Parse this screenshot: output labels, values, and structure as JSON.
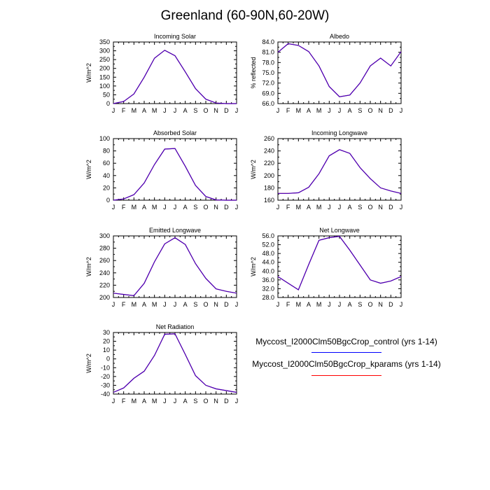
{
  "title": "Greenland (60-90N,60-20W)",
  "colors": {
    "control": "#0000ff",
    "kparams": "#ff0000",
    "overlap": "#3f00bf",
    "axis": "#000000",
    "background": "#ffffff"
  },
  "legend": {
    "control": "Myccost_I2000Clm50BgcCrop_control (yrs 1-14)",
    "kparams": "Myccost_I2000Clm50BgcCrop_kparams (yrs 1-14)"
  },
  "chart_data": [
    {
      "type": "line",
      "title": "Incoming Solar",
      "ylabel": "W/m^2",
      "categories": [
        "J",
        "F",
        "M",
        "A",
        "M",
        "J",
        "J",
        "A",
        "S",
        "O",
        "N",
        "D",
        "J"
      ],
      "ylim": [
        0,
        350
      ],
      "yticks": [
        "0",
        "50",
        "100",
        "150",
        "200",
        "250",
        "300",
        "350"
      ],
      "series": [
        {
          "name": "Myccost_I2000Clm50BgcCrop_control (yrs 1-14)",
          "values": [
            0,
            12,
            55,
            150,
            258,
            303,
            272,
            180,
            85,
            25,
            3,
            0,
            0
          ]
        },
        {
          "name": "Myccost_I2000Clm50BgcCrop_kparams (yrs 1-14)",
          "values": [
            0,
            12,
            55,
            150,
            258,
            303,
            272,
            180,
            85,
            25,
            3,
            0,
            0
          ]
        }
      ]
    },
    {
      "type": "line",
      "title": "Albedo",
      "ylabel": "% reflected",
      "categories": [
        "J",
        "F",
        "M",
        "A",
        "M",
        "J",
        "J",
        "A",
        "S",
        "O",
        "N",
        "D",
        "J"
      ],
      "ylim": [
        66,
        84
      ],
      "yticks": [
        "66.0",
        "69.0",
        "72.0",
        "75.0",
        "78.0",
        "81.0",
        "84.0"
      ],
      "series": [
        {
          "name": "Myccost_I2000Clm50BgcCrop_control (yrs 1-14)",
          "values": [
            81.0,
            83.5,
            83.0,
            81.2,
            77.0,
            71.0,
            68.0,
            68.5,
            72.0,
            77.0,
            79.3,
            77.0,
            81.2
          ]
        },
        {
          "name": "Myccost_I2000Clm50BgcCrop_kparams (yrs 1-14)",
          "values": [
            81.0,
            83.5,
            83.0,
            81.2,
            77.0,
            71.0,
            68.0,
            68.5,
            72.0,
            77.0,
            79.3,
            77.0,
            81.2
          ]
        }
      ]
    },
    {
      "type": "line",
      "title": "Absorbed Solar",
      "ylabel": "W/m^2",
      "categories": [
        "J",
        "F",
        "M",
        "A",
        "M",
        "J",
        "J",
        "A",
        "S",
        "O",
        "N",
        "D",
        "J"
      ],
      "ylim": [
        0,
        100
      ],
      "yticks": [
        "0",
        "20",
        "40",
        "60",
        "80",
        "100"
      ],
      "series": [
        {
          "name": "Myccost_I2000Clm50BgcCrop_control (yrs 1-14)",
          "values": [
            0,
            2,
            9,
            28,
            58,
            83,
            84,
            55,
            24,
            6,
            0.5,
            0,
            0
          ]
        },
        {
          "name": "Myccost_I2000Clm50BgcCrop_kparams (yrs 1-14)",
          "values": [
            0,
            2,
            9,
            28,
            58,
            83,
            84,
            55,
            24,
            6,
            0.5,
            0,
            0
          ]
        }
      ]
    },
    {
      "type": "line",
      "title": "Incoming Longwave",
      "ylabel": "W/m^2",
      "categories": [
        "J",
        "F",
        "M",
        "A",
        "M",
        "J",
        "J",
        "A",
        "S",
        "O",
        "N",
        "D",
        "J"
      ],
      "ylim": [
        160,
        260
      ],
      "yticks": [
        "160",
        "180",
        "200",
        "220",
        "240",
        "260"
      ],
      "series": [
        {
          "name": "Myccost_I2000Clm50BgcCrop_control (yrs 1-14)",
          "values": [
            171,
            171,
            172,
            181,
            203,
            232,
            242,
            236,
            213,
            195,
            180,
            175,
            171
          ]
        },
        {
          "name": "Myccost_I2000Clm50BgcCrop_kparams (yrs 1-14)",
          "values": [
            171,
            171,
            172,
            181,
            203,
            232,
            242,
            236,
            213,
            195,
            180,
            175,
            171
          ]
        }
      ]
    },
    {
      "type": "line",
      "title": "Emitted Longwave",
      "ylabel": "W/m^2",
      "categories": [
        "J",
        "F",
        "M",
        "A",
        "M",
        "J",
        "J",
        "A",
        "S",
        "O",
        "N",
        "D",
        "J"
      ],
      "ylim": [
        200,
        300
      ],
      "yticks": [
        "200",
        "220",
        "240",
        "260",
        "280",
        "300"
      ],
      "series": [
        {
          "name": "Myccost_I2000Clm50BgcCrop_control (yrs 1-14)",
          "values": [
            207,
            205,
            203,
            223,
            258,
            287,
            297,
            286,
            255,
            231,
            214,
            210,
            207
          ]
        },
        {
          "name": "Myccost_I2000Clm50BgcCrop_kparams (yrs 1-14)",
          "values": [
            207,
            205,
            203,
            223,
            258,
            287,
            297,
            286,
            255,
            231,
            214,
            210,
            207
          ]
        }
      ]
    },
    {
      "type": "line",
      "title": "Net Longwave",
      "ylabel": "W/m^2",
      "categories": [
        "J",
        "F",
        "M",
        "A",
        "M",
        "J",
        "J",
        "A",
        "S",
        "O",
        "N",
        "D",
        "J"
      ],
      "ylim": [
        28,
        56
      ],
      "yticks": [
        "28.0",
        "32.0",
        "36.0",
        "40.0",
        "44.0",
        "48.0",
        "52.0",
        "56.0"
      ],
      "series": [
        {
          "name": "Myccost_I2000Clm50BgcCrop_control (yrs 1-14)",
          "values": [
            37.5,
            34.5,
            31.5,
            43.0,
            54.0,
            55.2,
            55.8,
            49.5,
            42.8,
            36.0,
            34.5,
            35.5,
            37.5
          ]
        },
        {
          "name": "Myccost_I2000Clm50BgcCrop_kparams (yrs 1-14)",
          "values": [
            37.5,
            34.5,
            31.5,
            43.0,
            54.0,
            55.2,
            55.8,
            49.5,
            42.8,
            36.0,
            34.5,
            35.5,
            37.5
          ]
        }
      ]
    },
    {
      "type": "line",
      "title": "Net Radiation",
      "ylabel": "W/m^2",
      "categories": [
        "J",
        "F",
        "M",
        "A",
        "M",
        "J",
        "J",
        "A",
        "S",
        "O",
        "N",
        "D",
        "J"
      ],
      "ylim": [
        -40,
        30
      ],
      "yticks": [
        "-40",
        "-30",
        "-20",
        "-10",
        "0",
        "10",
        "20",
        "30"
      ],
      "series": [
        {
          "name": "Myccost_I2000Clm50BgcCrop_control (yrs 1-14)",
          "values": [
            -38,
            -33,
            -22,
            -14,
            4,
            28,
            28.5,
            5,
            -19,
            -30,
            -34,
            -36,
            -38
          ]
        },
        {
          "name": "Myccost_I2000Clm50BgcCrop_kparams (yrs 1-14)",
          "values": [
            -38,
            -33,
            -22,
            -14,
            4,
            28,
            28.5,
            5,
            -19,
            -30,
            -34,
            -36,
            -38
          ]
        }
      ]
    }
  ]
}
